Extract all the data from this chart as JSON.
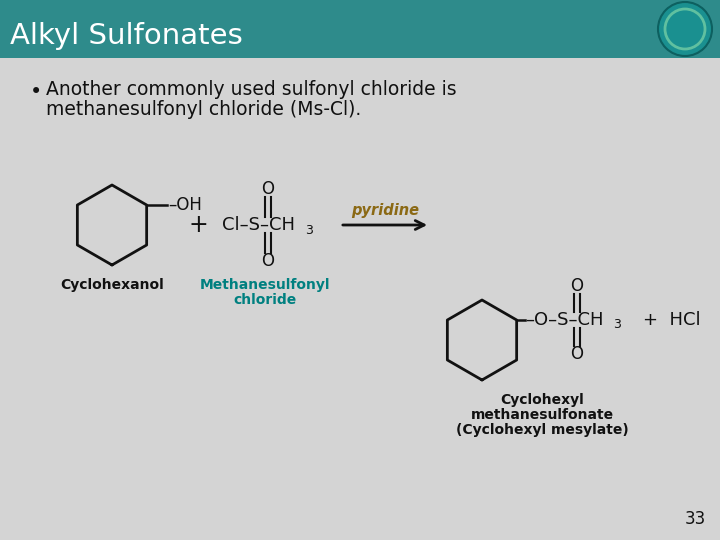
{
  "title": "Alkyl Sulfonates",
  "title_bg_color": "#2e8b8b",
  "title_text_color": "#ffffff",
  "slide_bg_color": "#d4d4d4",
  "bullet_line1": "Another commonly used sulfonyl chloride is",
  "bullet_line2": "methanesulfonyl chloride (Ms-Cl).",
  "label_cyclohexanol": "Cyclohexanol",
  "label_mscl_1": "Methanesulfonyl",
  "label_mscl_2": "chloride",
  "label_prod_1": "Cyclohexyl",
  "label_prod_2": "methanesulfonate",
  "label_prod_3": "(Cyclohexyl mesylate)",
  "reagent": "pyridine",
  "page_number": "33",
  "text_color": "#111111",
  "mscl_label_color": "#008080"
}
